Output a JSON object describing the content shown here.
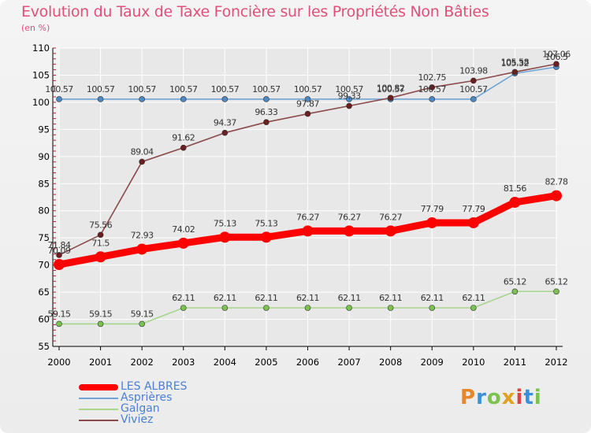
{
  "title": "Evolution du Taux de Taxe Foncière sur les Propriétés Non Bâties",
  "unit_label": "(en %)",
  "logo": {
    "text": "Proxiti"
  },
  "colors": {
    "title": "#e0507a",
    "grid": "#ffffff",
    "axis": "#000000",
    "legend_text": "#4a7fd6"
  },
  "chart_data": {
    "type": "line",
    "title": "Evolution du Taux de Taxe Foncière sur les Propriétés Non Bâties",
    "ylabel": "(en %)",
    "xlabel": "",
    "x": [
      "2000",
      "2001",
      "2002",
      "2003",
      "2004",
      "2005",
      "2006",
      "2007",
      "2008",
      "2009",
      "2010",
      "2011",
      "2012"
    ],
    "ylim": [
      55,
      110
    ],
    "yticks": [
      55,
      60,
      65,
      70,
      75,
      80,
      85,
      90,
      95,
      100,
      105,
      110
    ],
    "grid": true,
    "legend_position": "bottom-left",
    "series": [
      {
        "name": "LES ALBRES",
        "color": "#ff0000",
        "point_color": "#ff0000",
        "weight": "thick",
        "values": [
          70.09,
          71.5,
          72.93,
          74.02,
          75.13,
          75.13,
          76.27,
          76.27,
          76.27,
          77.79,
          77.79,
          81.56,
          82.78
        ],
        "labels": [
          "70.09",
          "71.5",
          "72.93",
          "74.02",
          "75.13",
          "75.13",
          "76.27",
          "76.27",
          "76.27",
          "77.79",
          "77.79",
          "81.56",
          "82.78"
        ]
      },
      {
        "name": "Asprières",
        "color": "#6fa3d6",
        "point_color": "#4d88c4",
        "weight": "thin",
        "values": [
          100.57,
          100.57,
          100.57,
          100.57,
          100.57,
          100.57,
          100.57,
          100.57,
          100.57,
          100.57,
          100.57,
          105.32,
          106.5
        ],
        "labels": [
          "100.57",
          "100.57",
          "100.57",
          "100.57",
          "100.57",
          "100.57",
          "100.57",
          "100.57",
          "100.57",
          "100.57",
          "100.57",
          "105.32",
          "106.5"
        ]
      },
      {
        "name": "Galgan",
        "color": "#a6d68a",
        "point_color": "#7cc24e",
        "weight": "thin",
        "values": [
          59.15,
          59.15,
          59.15,
          62.11,
          62.11,
          62.11,
          62.11,
          62.11,
          62.11,
          62.11,
          62.11,
          65.12,
          65.12
        ],
        "labels": [
          "59.15",
          "59.15",
          "59.15",
          "62.11",
          "62.11",
          "62.11",
          "62.11",
          "62.11",
          "62.11",
          "62.11",
          "62.11",
          "65.12",
          "65.12"
        ]
      },
      {
        "name": "Viviez",
        "color": "#8b4a4a",
        "point_color": "#6b1f1f",
        "weight": "thin",
        "values": [
          71.84,
          75.56,
          89.04,
          91.62,
          94.37,
          96.33,
          97.87,
          99.33,
          100.82,
          102.75,
          103.98,
          105.58,
          107.06
        ],
        "labels": [
          "71.84",
          "75.56",
          "89.04",
          "91.62",
          "94.37",
          "96.33",
          "97.87",
          "99.33",
          "100.82",
          "102.75",
          "103.98",
          "105.58",
          "107.06"
        ]
      }
    ]
  }
}
